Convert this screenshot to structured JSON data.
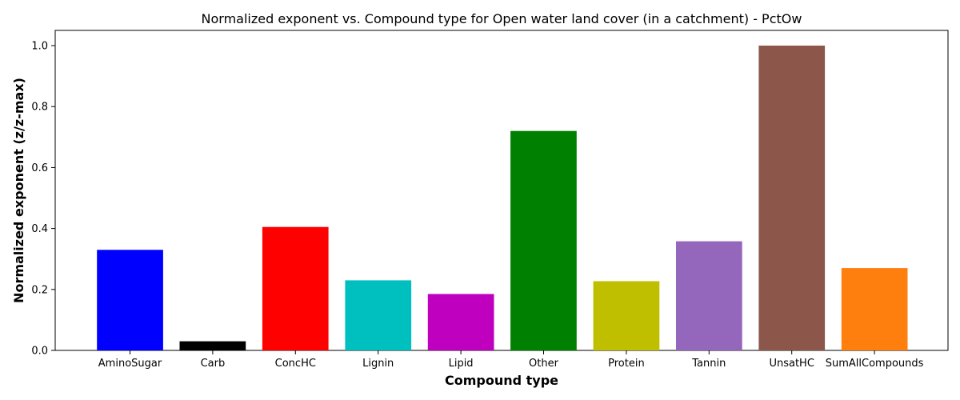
{
  "chart_data": {
    "type": "bar",
    "title": "Normalized exponent vs. Compound type for Open water land cover (in a catchment) - PctOw",
    "xlabel": "Compound type",
    "ylabel": "Normalized exponent (z/z-max)",
    "ylim": [
      0,
      1.05
    ],
    "yticks": [
      0.0,
      0.2,
      0.4,
      0.6,
      0.8,
      1.0
    ],
    "ytick_labels": [
      "0.0",
      "0.2",
      "0.4",
      "0.6",
      "0.8",
      "1.0"
    ],
    "grid": false,
    "categories": [
      "AminoSugar",
      "Carb",
      "ConcHC",
      "Lignin",
      "Lipid",
      "Other",
      "Protein",
      "Tannin",
      "UnsatHC",
      "SumAllCompounds"
    ],
    "values": [
      0.33,
      0.03,
      0.405,
      0.23,
      0.185,
      0.72,
      0.227,
      0.358,
      1.0,
      0.27
    ],
    "colors": [
      "#0000ff",
      "#000000",
      "#ff0000",
      "#00bfbf",
      "#bf00bf",
      "#008000",
      "#bfbf00",
      "#9467bd",
      "#8c564b",
      "#ff7f0e"
    ]
  }
}
